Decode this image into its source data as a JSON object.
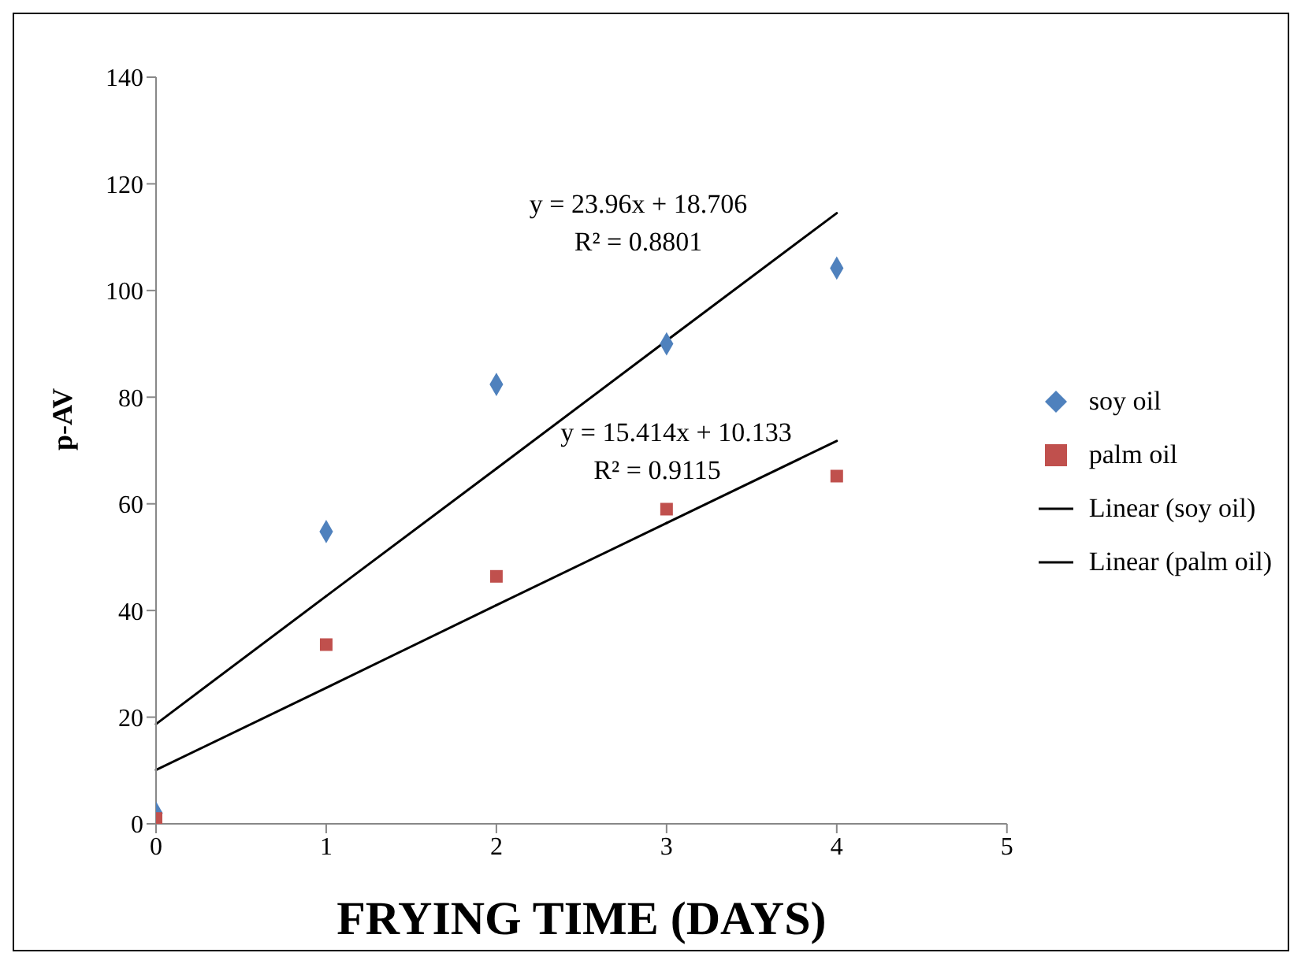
{
  "chart_data": {
    "type": "scatter",
    "xlabel": "FRYING TIME (DAYS)",
    "ylabel": "p-AV",
    "x": [
      0,
      1,
      2,
      3,
      4
    ],
    "series": [
      {
        "name": "soy oil",
        "color": "#4f81bd",
        "marker": "diamond",
        "values": [
          2,
          54.8,
          82.4,
          90,
          104.2
        ]
      },
      {
        "name": "palm oil",
        "color": "#c0504d",
        "marker": "square",
        "values": [
          1,
          33.6,
          46.4,
          59,
          65.2
        ]
      },
      {
        "name": "Linear (soy oil)",
        "type": "line",
        "color": "#000000",
        "marker": "none",
        "values": [
          18.7,
          42.7,
          66.6,
          90.6,
          114.5
        ]
      },
      {
        "name": "Linear (palm oil)",
        "type": "line",
        "color": "#000000",
        "marker": "none",
        "values": [
          10.1,
          25.5,
          41,
          56.4,
          71.8
        ]
      }
    ],
    "xlim": [
      0,
      5
    ],
    "xticks": [
      0,
      1,
      2,
      3,
      4,
      5
    ],
    "ylim": [
      0,
      140
    ],
    "yticks": [
      0,
      20,
      40,
      60,
      80,
      100,
      120,
      140
    ],
    "grid": false,
    "legend": "right",
    "annotations": [
      "y = 23.96x + 18.706",
      "R² = 0.8801",
      "y = 15.414x + 10.133",
      "R² = 0.9115"
    ]
  }
}
